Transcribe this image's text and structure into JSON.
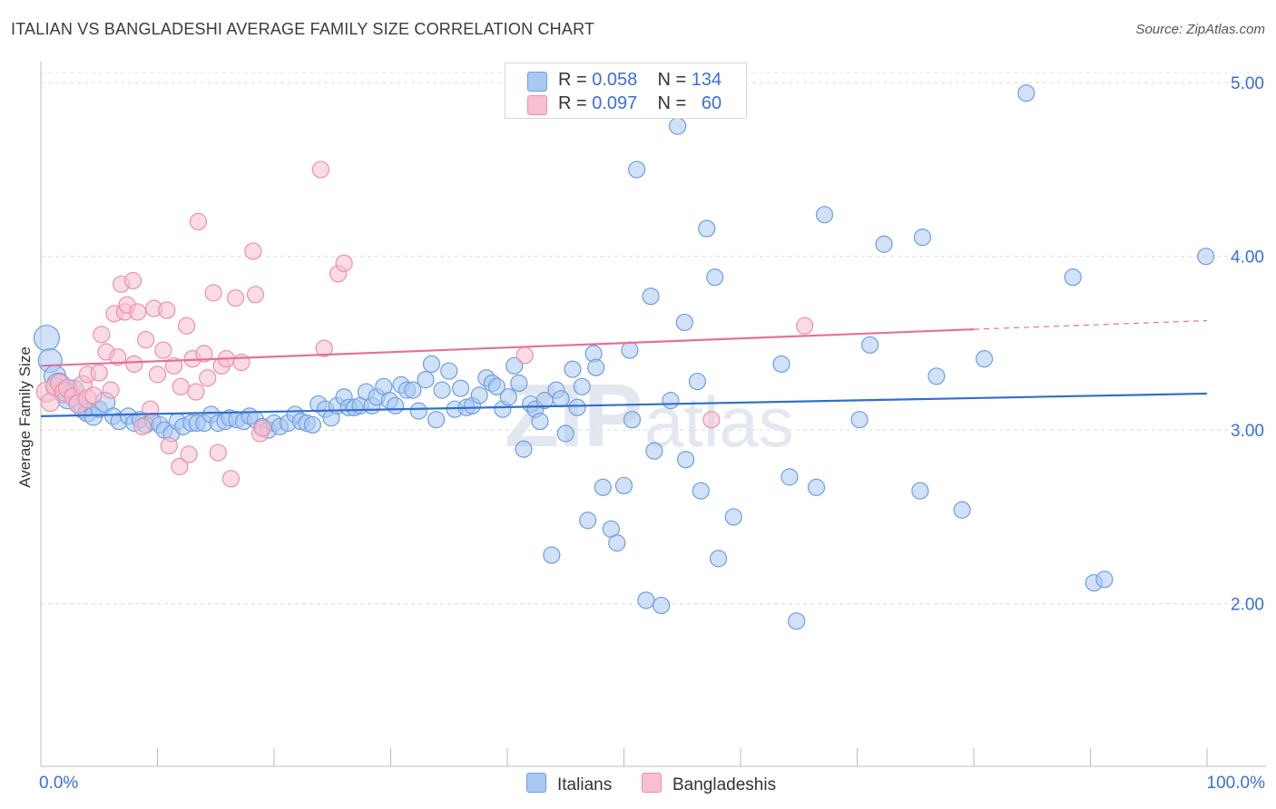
{
  "title": "ITALIAN VS BANGLADESHI AVERAGE FAMILY SIZE CORRELATION CHART",
  "source": "Source: ZipAtlas.com",
  "watermark": "ZIPatlas",
  "legend": {
    "italians": {
      "r_label": "R =",
      "r_value": "0.058",
      "n_label": "N =",
      "n_value": "134"
    },
    "bangladeshis": {
      "r_label": "R =",
      "r_value": "0.097",
      "n_label": "N =",
      "n_value": "60"
    }
  },
  "colors": {
    "italians_fill": "#a9c8f2",
    "italians_stroke": "#6f9ee0",
    "italians_line": "#2f6fce",
    "bangladeshis_fill": "#f7bfd0",
    "bangladeshis_stroke": "#ec8fab",
    "bangladeshis_line": "#e4719a",
    "axis_text": "#3a6fd6"
  },
  "chart_data": {
    "type": "scatter",
    "title": "ITALIAN VS BANGLADESHI AVERAGE FAMILY SIZE CORRELATION CHART",
    "xlabel": "",
    "ylabel": "Average Family Size",
    "x_tick_labels": [
      "0.0%",
      "100.0%"
    ],
    "y_tick_labels": [
      "2.00",
      "3.00",
      "4.00",
      "5.00"
    ],
    "xlim": [
      0,
      100
    ],
    "ylim": [
      1.0,
      5.1
    ],
    "grid": "horizontal dashed",
    "legend_position": "top-center",
    "series": [
      {
        "name": "Italians",
        "r": 0.058,
        "n": 134,
        "trend": {
          "x": [
            0,
            100
          ],
          "y": [
            3.08,
            3.21
          ]
        },
        "points": [
          [
            0.5,
            3.53,
            14
          ],
          [
            0.8,
            3.4,
            13
          ],
          [
            1.2,
            3.31,
            12
          ],
          [
            1.5,
            3.26,
            13
          ],
          [
            2.0,
            3.22,
            12
          ],
          [
            2.3,
            3.18,
            11
          ],
          [
            2.8,
            3.23,
            11
          ],
          [
            3.2,
            3.15,
            10
          ],
          [
            3.6,
            3.12,
            10
          ],
          [
            4.0,
            3.1,
            10
          ],
          [
            4.5,
            3.08,
            10
          ],
          [
            5.0,
            3.12,
            9
          ],
          [
            5.5,
            3.16,
            11
          ],
          [
            6.2,
            3.08,
            9
          ],
          [
            6.7,
            3.05,
            9
          ],
          [
            7.5,
            3.08,
            9
          ],
          [
            8.0,
            3.04,
            9
          ],
          [
            8.5,
            3.06,
            9
          ],
          [
            9.0,
            3.03,
            9
          ],
          [
            9.6,
            3.05,
            9
          ],
          [
            10.2,
            3.03,
            9
          ],
          [
            10.6,
            3.0,
            9
          ],
          [
            11.2,
            2.98,
            9
          ],
          [
            11.7,
            3.05,
            9
          ],
          [
            12.2,
            3.02,
            9
          ],
          [
            12.9,
            3.04,
            9
          ],
          [
            13.4,
            3.04,
            9
          ],
          [
            14.0,
            3.04,
            9
          ],
          [
            14.6,
            3.09,
            9
          ],
          [
            15.2,
            3.04,
            9
          ],
          [
            15.8,
            3.05,
            9
          ],
          [
            16.2,
            3.07,
            9
          ],
          [
            16.8,
            3.06,
            9
          ],
          [
            17.4,
            3.05,
            9
          ],
          [
            17.9,
            3.08,
            9
          ],
          [
            18.4,
            3.06,
            9
          ],
          [
            19.0,
            3.02,
            9
          ],
          [
            19.5,
            3.0,
            9
          ],
          [
            20.0,
            3.04,
            9
          ],
          [
            20.5,
            3.02,
            9
          ],
          [
            21.2,
            3.04,
            9
          ],
          [
            21.8,
            3.09,
            9
          ],
          [
            22.3,
            3.05,
            9
          ],
          [
            22.8,
            3.04,
            9
          ],
          [
            23.3,
            3.03,
            9
          ],
          [
            23.8,
            3.15,
            9
          ],
          [
            24.4,
            3.12,
            9
          ],
          [
            24.9,
            3.07,
            9
          ],
          [
            25.4,
            3.14,
            9
          ],
          [
            26.0,
            3.19,
            9
          ],
          [
            26.4,
            3.13,
            9
          ],
          [
            26.9,
            3.13,
            9
          ],
          [
            27.4,
            3.14,
            9
          ],
          [
            27.9,
            3.22,
            9
          ],
          [
            28.4,
            3.14,
            9
          ],
          [
            28.8,
            3.19,
            9
          ],
          [
            29.4,
            3.25,
            9
          ],
          [
            29.9,
            3.17,
            9
          ],
          [
            30.4,
            3.14,
            9
          ],
          [
            30.9,
            3.26,
            9
          ],
          [
            31.4,
            3.23,
            9
          ],
          [
            31.9,
            3.23,
            9
          ],
          [
            32.4,
            3.11,
            9
          ],
          [
            33.0,
            3.29,
            9
          ],
          [
            33.5,
            3.38,
            9
          ],
          [
            33.9,
            3.06,
            9
          ],
          [
            34.4,
            3.23,
            9
          ],
          [
            35.0,
            3.34,
            9
          ],
          [
            35.5,
            3.12,
            9
          ],
          [
            36.0,
            3.24,
            9
          ],
          [
            36.5,
            3.13,
            9
          ],
          [
            37.0,
            3.14,
            9
          ],
          [
            37.6,
            3.2,
            9
          ],
          [
            38.2,
            3.3,
            9
          ],
          [
            38.7,
            3.27,
            9
          ],
          [
            39.1,
            3.25,
            9
          ],
          [
            39.6,
            3.12,
            9
          ],
          [
            40.1,
            3.19,
            9
          ],
          [
            40.6,
            3.37,
            9
          ],
          [
            41.0,
            3.27,
            9
          ],
          [
            41.4,
            2.89,
            9
          ],
          [
            42.0,
            3.15,
            9
          ],
          [
            42.4,
            3.12,
            9
          ],
          [
            42.8,
            3.05,
            9
          ],
          [
            43.2,
            3.17,
            9
          ],
          [
            43.8,
            2.28,
            9
          ],
          [
            44.2,
            3.23,
            9
          ],
          [
            44.6,
            3.18,
            9
          ],
          [
            45.0,
            2.98,
            9
          ],
          [
            45.6,
            3.35,
            9
          ],
          [
            46.0,
            3.13,
            9
          ],
          [
            46.4,
            3.25,
            9
          ],
          [
            46.9,
            2.48,
            9
          ],
          [
            47.4,
            3.44,
            9
          ],
          [
            47.6,
            3.36,
            9
          ],
          [
            48.2,
            2.67,
            9
          ],
          [
            48.9,
            2.43,
            9
          ],
          [
            49.4,
            2.35,
            9
          ],
          [
            50.0,
            2.68,
            9
          ],
          [
            50.5,
            3.46,
            9
          ],
          [
            50.7,
            3.06,
            9
          ],
          [
            51.1,
            4.5,
            9
          ],
          [
            51.9,
            2.02,
            9
          ],
          [
            52.3,
            3.77,
            9
          ],
          [
            52.6,
            2.88,
            9
          ],
          [
            53.2,
            1.99,
            9
          ],
          [
            54.0,
            3.17,
            9
          ],
          [
            54.6,
            4.75,
            9
          ],
          [
            55.2,
            3.62,
            9
          ],
          [
            55.3,
            2.83,
            9
          ],
          [
            56.3,
            3.28,
            9
          ],
          [
            56.6,
            2.65,
            9
          ],
          [
            57.1,
            4.16,
            9
          ],
          [
            57.8,
            3.88,
            9
          ],
          [
            58.1,
            2.26,
            9
          ],
          [
            59.4,
            2.5,
            9
          ],
          [
            63.5,
            3.38,
            9
          ],
          [
            64.2,
            2.73,
            9
          ],
          [
            64.8,
            1.9,
            9
          ],
          [
            66.5,
            2.67,
            9
          ],
          [
            67.2,
            4.24,
            9
          ],
          [
            70.2,
            3.06,
            9
          ],
          [
            71.1,
            3.49,
            9
          ],
          [
            72.3,
            4.07,
            9
          ],
          [
            75.4,
            2.65,
            9
          ],
          [
            75.6,
            4.11,
            9
          ],
          [
            76.8,
            3.31,
            9
          ],
          [
            79.0,
            2.54,
            9
          ],
          [
            80.9,
            3.41,
            9
          ],
          [
            84.5,
            4.94,
            9
          ],
          [
            88.5,
            3.88,
            9
          ],
          [
            90.3,
            2.12,
            9
          ],
          [
            91.2,
            2.14,
            9
          ],
          [
            99.9,
            4.0,
            9
          ]
        ]
      },
      {
        "name": "Bangladeshis",
        "r": 0.097,
        "n": 60,
        "trend": {
          "x": [
            0,
            80
          ],
          "y": [
            3.37,
            3.58
          ]
        },
        "trend_dashed": {
          "x": [
            80,
            100
          ],
          "y": [
            3.58,
            3.63
          ]
        },
        "points": [
          [
            0.5,
            3.22,
            11
          ],
          [
            0.8,
            3.16,
            10
          ],
          [
            1.2,
            3.25,
            10
          ],
          [
            1.6,
            3.27,
            10
          ],
          [
            2.0,
            3.22,
            10
          ],
          [
            2.3,
            3.24,
            10
          ],
          [
            2.8,
            3.19,
            10
          ],
          [
            3.2,
            3.15,
            10
          ],
          [
            3.6,
            3.26,
            10
          ],
          [
            4.0,
            3.18,
            10
          ],
          [
            4.0,
            3.32,
            9
          ],
          [
            4.5,
            3.2,
            9
          ],
          [
            5.0,
            3.33,
            9
          ],
          [
            5.2,
            3.55,
            9
          ],
          [
            5.6,
            3.45,
            9
          ],
          [
            6.0,
            3.23,
            9
          ],
          [
            6.3,
            3.67,
            9
          ],
          [
            6.6,
            3.42,
            9
          ],
          [
            6.9,
            3.84,
            9
          ],
          [
            7.2,
            3.68,
            9
          ],
          [
            7.4,
            3.72,
            9
          ],
          [
            7.9,
            3.86,
            9
          ],
          [
            8.0,
            3.38,
            9
          ],
          [
            8.3,
            3.68,
            9
          ],
          [
            8.7,
            3.02,
            9
          ],
          [
            9.0,
            3.52,
            9
          ],
          [
            9.4,
            3.12,
            9
          ],
          [
            9.7,
            3.7,
            9
          ],
          [
            10.0,
            3.32,
            9
          ],
          [
            10.5,
            3.46,
            9
          ],
          [
            10.8,
            3.69,
            9
          ],
          [
            11.0,
            2.91,
            9
          ],
          [
            11.4,
            3.37,
            9
          ],
          [
            11.9,
            2.79,
            9
          ],
          [
            12.0,
            3.25,
            9
          ],
          [
            12.5,
            3.6,
            9
          ],
          [
            12.7,
            2.86,
            9
          ],
          [
            13.0,
            3.41,
            9
          ],
          [
            13.3,
            3.22,
            9
          ],
          [
            13.5,
            4.2,
            9
          ],
          [
            14.0,
            3.44,
            9
          ],
          [
            14.3,
            3.3,
            9
          ],
          [
            14.8,
            3.79,
            9
          ],
          [
            15.2,
            2.87,
            9
          ],
          [
            15.5,
            3.37,
            9
          ],
          [
            15.9,
            3.41,
            9
          ],
          [
            16.3,
            2.72,
            9
          ],
          [
            16.7,
            3.76,
            9
          ],
          [
            17.2,
            3.39,
            9
          ],
          [
            18.2,
            4.03,
            9
          ],
          [
            18.4,
            3.78,
            9
          ],
          [
            18.8,
            2.98,
            9
          ],
          [
            19.0,
            3.01,
            9
          ],
          [
            24.0,
            4.5,
            9
          ],
          [
            24.3,
            3.47,
            9
          ],
          [
            25.5,
            3.9,
            9
          ],
          [
            26.0,
            3.96,
            9
          ],
          [
            41.5,
            3.43,
            9
          ],
          [
            57.5,
            3.06,
            9
          ],
          [
            65.5,
            3.6,
            9
          ]
        ]
      }
    ]
  }
}
